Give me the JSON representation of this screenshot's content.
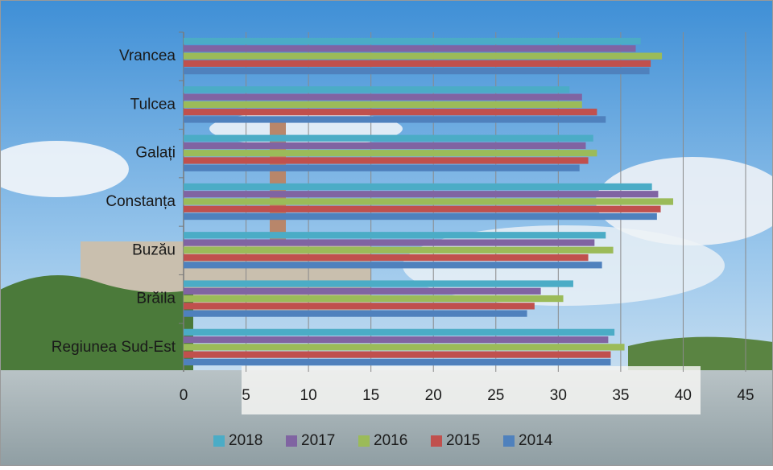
{
  "chart_data": {
    "type": "bar",
    "orientation": "horizontal",
    "categories": [
      "Vrancea",
      "Tulcea",
      "Galați",
      "Constanța",
      "Buzău",
      "Brăila",
      "Regiunea Sud-Est"
    ],
    "series": [
      {
        "name": "2018",
        "color": "#4bacc6",
        "values": [
          36.6,
          30.9,
          32.8,
          37.5,
          33.8,
          31.2,
          34.5
        ]
      },
      {
        "name": "2017",
        "color": "#8064a2",
        "values": [
          36.2,
          31.9,
          32.2,
          38.0,
          32.9,
          28.6,
          34.0
        ]
      },
      {
        "name": "2016",
        "color": "#9bbb59",
        "values": [
          38.3,
          31.9,
          33.1,
          39.2,
          34.4,
          30.4,
          35.3
        ]
      },
      {
        "name": "2015",
        "color": "#c0504d",
        "values": [
          37.4,
          33.1,
          32.4,
          38.2,
          32.4,
          28.1,
          34.2
        ]
      },
      {
        "name": "2014",
        "color": "#4f81bd",
        "values": [
          37.3,
          33.8,
          31.7,
          37.9,
          33.5,
          27.5,
          34.2
        ]
      }
    ],
    "xlim": [
      0,
      45
    ],
    "xticks": [
      0,
      5,
      10,
      15,
      20,
      25,
      30,
      35,
      40,
      45
    ],
    "grid": true,
    "legend": "bottom"
  }
}
